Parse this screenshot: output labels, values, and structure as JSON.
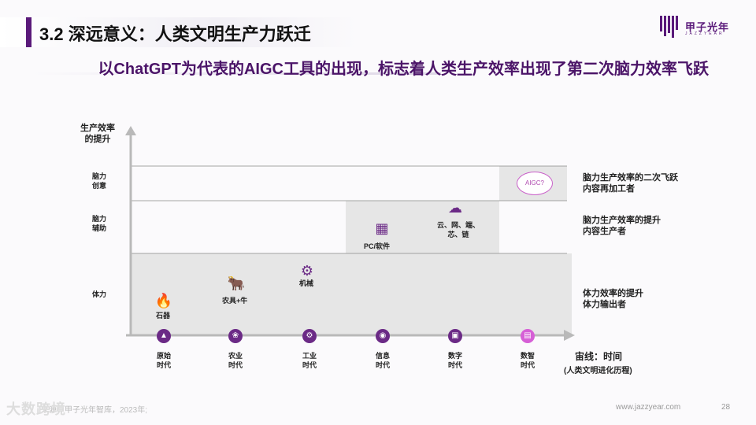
{
  "header": {
    "title": "3.2 深远意义：人类文明生产力跃迁",
    "subtitle": "以ChatGPT为代表的AIGC工具的出现，标志着人类生产效率出现了第二次脑力效率飞跃",
    "logo_text": "甲子光年",
    "logo_sub": "JAZZYEAR"
  },
  "y_axis": {
    "title_line1": "生产效率",
    "title_line2": "的提升",
    "levels": [
      {
        "line1": "脑力",
        "line2": "创意"
      },
      {
        "line1": "脑力",
        "line2": "辅助"
      },
      {
        "line1": "体力",
        "line2": ""
      }
    ]
  },
  "right_labels": [
    {
      "line1": "脑力生产效率的二次飞跃",
      "line2": "内容再加工者"
    },
    {
      "line1": "脑力生产效率的提升",
      "line2": "内容生产者"
    },
    {
      "line1": "体力效率的提升",
      "line2": "体力输出者"
    }
  ],
  "tools": [
    {
      "label": "石器",
      "icon": "fire-icon"
    },
    {
      "label": "农具+牛",
      "icon": "ox-icon"
    },
    {
      "label": "机械",
      "icon": "gear-icon"
    },
    {
      "label": "PC/软件",
      "icon": "grid-icon"
    },
    {
      "label1": "云、网、端、",
      "label2": "芯、链",
      "icon": "cloud-upload-icon"
    },
    {
      "label": "AIGC?",
      "icon": "aigc-badge"
    }
  ],
  "eras": [
    {
      "line1": "原始",
      "line2": "时代"
    },
    {
      "line1": "农业",
      "line2": "时代"
    },
    {
      "line1": "工业",
      "line2": "时代"
    },
    {
      "line1": "信息",
      "line2": "时代"
    },
    {
      "line1": "数字",
      "line2": "时代"
    },
    {
      "line1": "数智",
      "line2": "时代"
    }
  ],
  "x_axis": {
    "title": "宙线：时间",
    "subtitle": "(人类文明进化历程)"
  },
  "footer": {
    "source": "来源：甲子光年智库，2023年;",
    "url": "www.jazzyear.com",
    "page": "28",
    "corner_watermark": "大数跨境"
  },
  "colors": {
    "accent": "#5a1a7a",
    "era_icon": "#6b2a86",
    "era_icon_current": "#d65fd6",
    "shade": "#e4e4e4"
  }
}
